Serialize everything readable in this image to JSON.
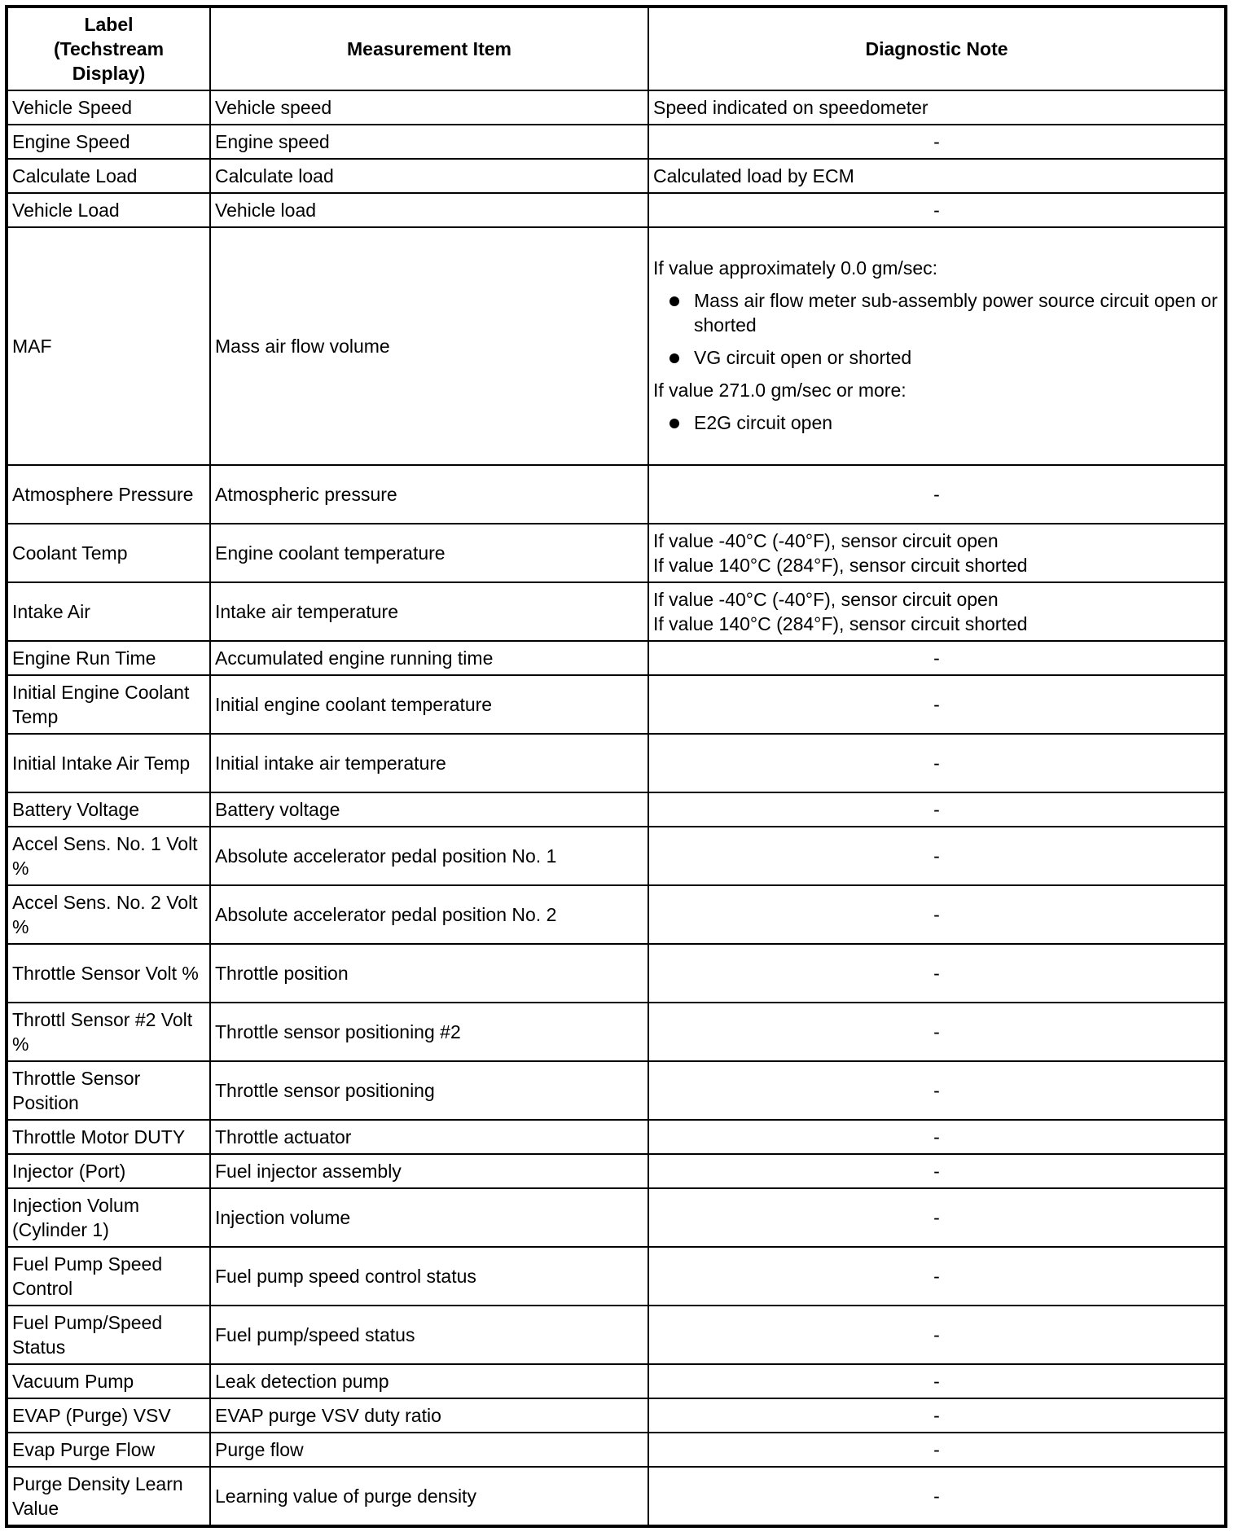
{
  "headers": {
    "label": "Label (Techstream Display)",
    "item": "Measurement Item",
    "note": "Diagnostic Note"
  },
  "rows": [
    {
      "label": "Vehicle Speed",
      "item": "Vehicle speed",
      "note": "Speed indicated on speedometer"
    },
    {
      "label": "Engine Speed",
      "item": "Engine speed",
      "note": "-"
    },
    {
      "label": "Calculate Load",
      "item": "Calculate load",
      "note": "Calculated load by ECM"
    },
    {
      "label": "Vehicle Load",
      "item": "Vehicle load",
      "note": "-"
    },
    {
      "label": "MAF",
      "item": "Mass air flow volume",
      "note": ""
    },
    {
      "label": "Atmosphere Pressure",
      "item": "Atmospheric pressure",
      "note": "-"
    },
    {
      "label": "Coolant Temp",
      "item": "Engine coolant temperature",
      "note": "If value -40°C (-40°F), sensor circuit open",
      "note2": "If value 140°C (284°F), sensor circuit shorted"
    },
    {
      "label": "Intake Air",
      "item": "Intake air temperature",
      "note": "If value -40°C (-40°F), sensor circuit open",
      "note2": "If value 140°C (284°F), sensor circuit shorted"
    },
    {
      "label": "Engine Run Time",
      "item": "Accumulated engine running time",
      "note": "-"
    },
    {
      "label": "Initial Engine Coolant Temp",
      "item": "Initial engine coolant temperature",
      "note": "-"
    },
    {
      "label": "Initial Intake Air Temp",
      "item": "Initial intake air temperature",
      "note": "-"
    },
    {
      "label": "Battery Voltage",
      "item": "Battery voltage",
      "note": "-"
    },
    {
      "label": "Accel Sens. No. 1 Volt %",
      "item": "Absolute accelerator pedal position No. 1",
      "note": "-"
    },
    {
      "label": "Accel Sens. No. 2 Volt %",
      "item": "Absolute accelerator pedal position No. 2",
      "note": "-"
    },
    {
      "label": "Throttle Sensor Volt %",
      "item": "Throttle position",
      "note": "-"
    },
    {
      "label": "Throttl Sensor #2 Volt %",
      "item": "Throttle sensor positioning #2",
      "note": "-"
    },
    {
      "label": "Throttle Sensor Position",
      "item": "Throttle sensor positioning",
      "note": "-"
    },
    {
      "label": "Throttle Motor DUTY",
      "item": "Throttle actuator",
      "note": "-"
    },
    {
      "label": "Injector (Port)",
      "item": "Fuel injector assembly",
      "note": "-"
    },
    {
      "label": "Injection Volum (Cylinder 1)",
      "item": "Injection volume",
      "note": "-"
    },
    {
      "label": "Fuel Pump Speed Control",
      "item": "Fuel pump speed control status",
      "note": "-"
    },
    {
      "label": "Fuel Pump/Speed Status",
      "item": "Fuel pump/speed status",
      "note": "-"
    },
    {
      "label": "Vacuum Pump",
      "item": "Leak detection pump",
      "note": "-"
    },
    {
      "label": "EVAP (Purge) VSV",
      "item": "EVAP purge VSV duty ratio",
      "note": "-"
    },
    {
      "label": "Evap Purge Flow",
      "item": "Purge flow",
      "note": "-"
    },
    {
      "label": "Purge Density Learn Value",
      "item": "Learning value of purge density",
      "note": "-"
    }
  ],
  "maf_note": {
    "intro1": "If value approximately 0.0 gm/sec:",
    "bullets1": [
      "Mass air flow meter sub-assembly power source circuit open or shorted",
      "VG circuit open or shorted"
    ],
    "intro2": "If value 271.0 gm/sec or more:",
    "bullets2": [
      "E2G circuit open"
    ]
  }
}
